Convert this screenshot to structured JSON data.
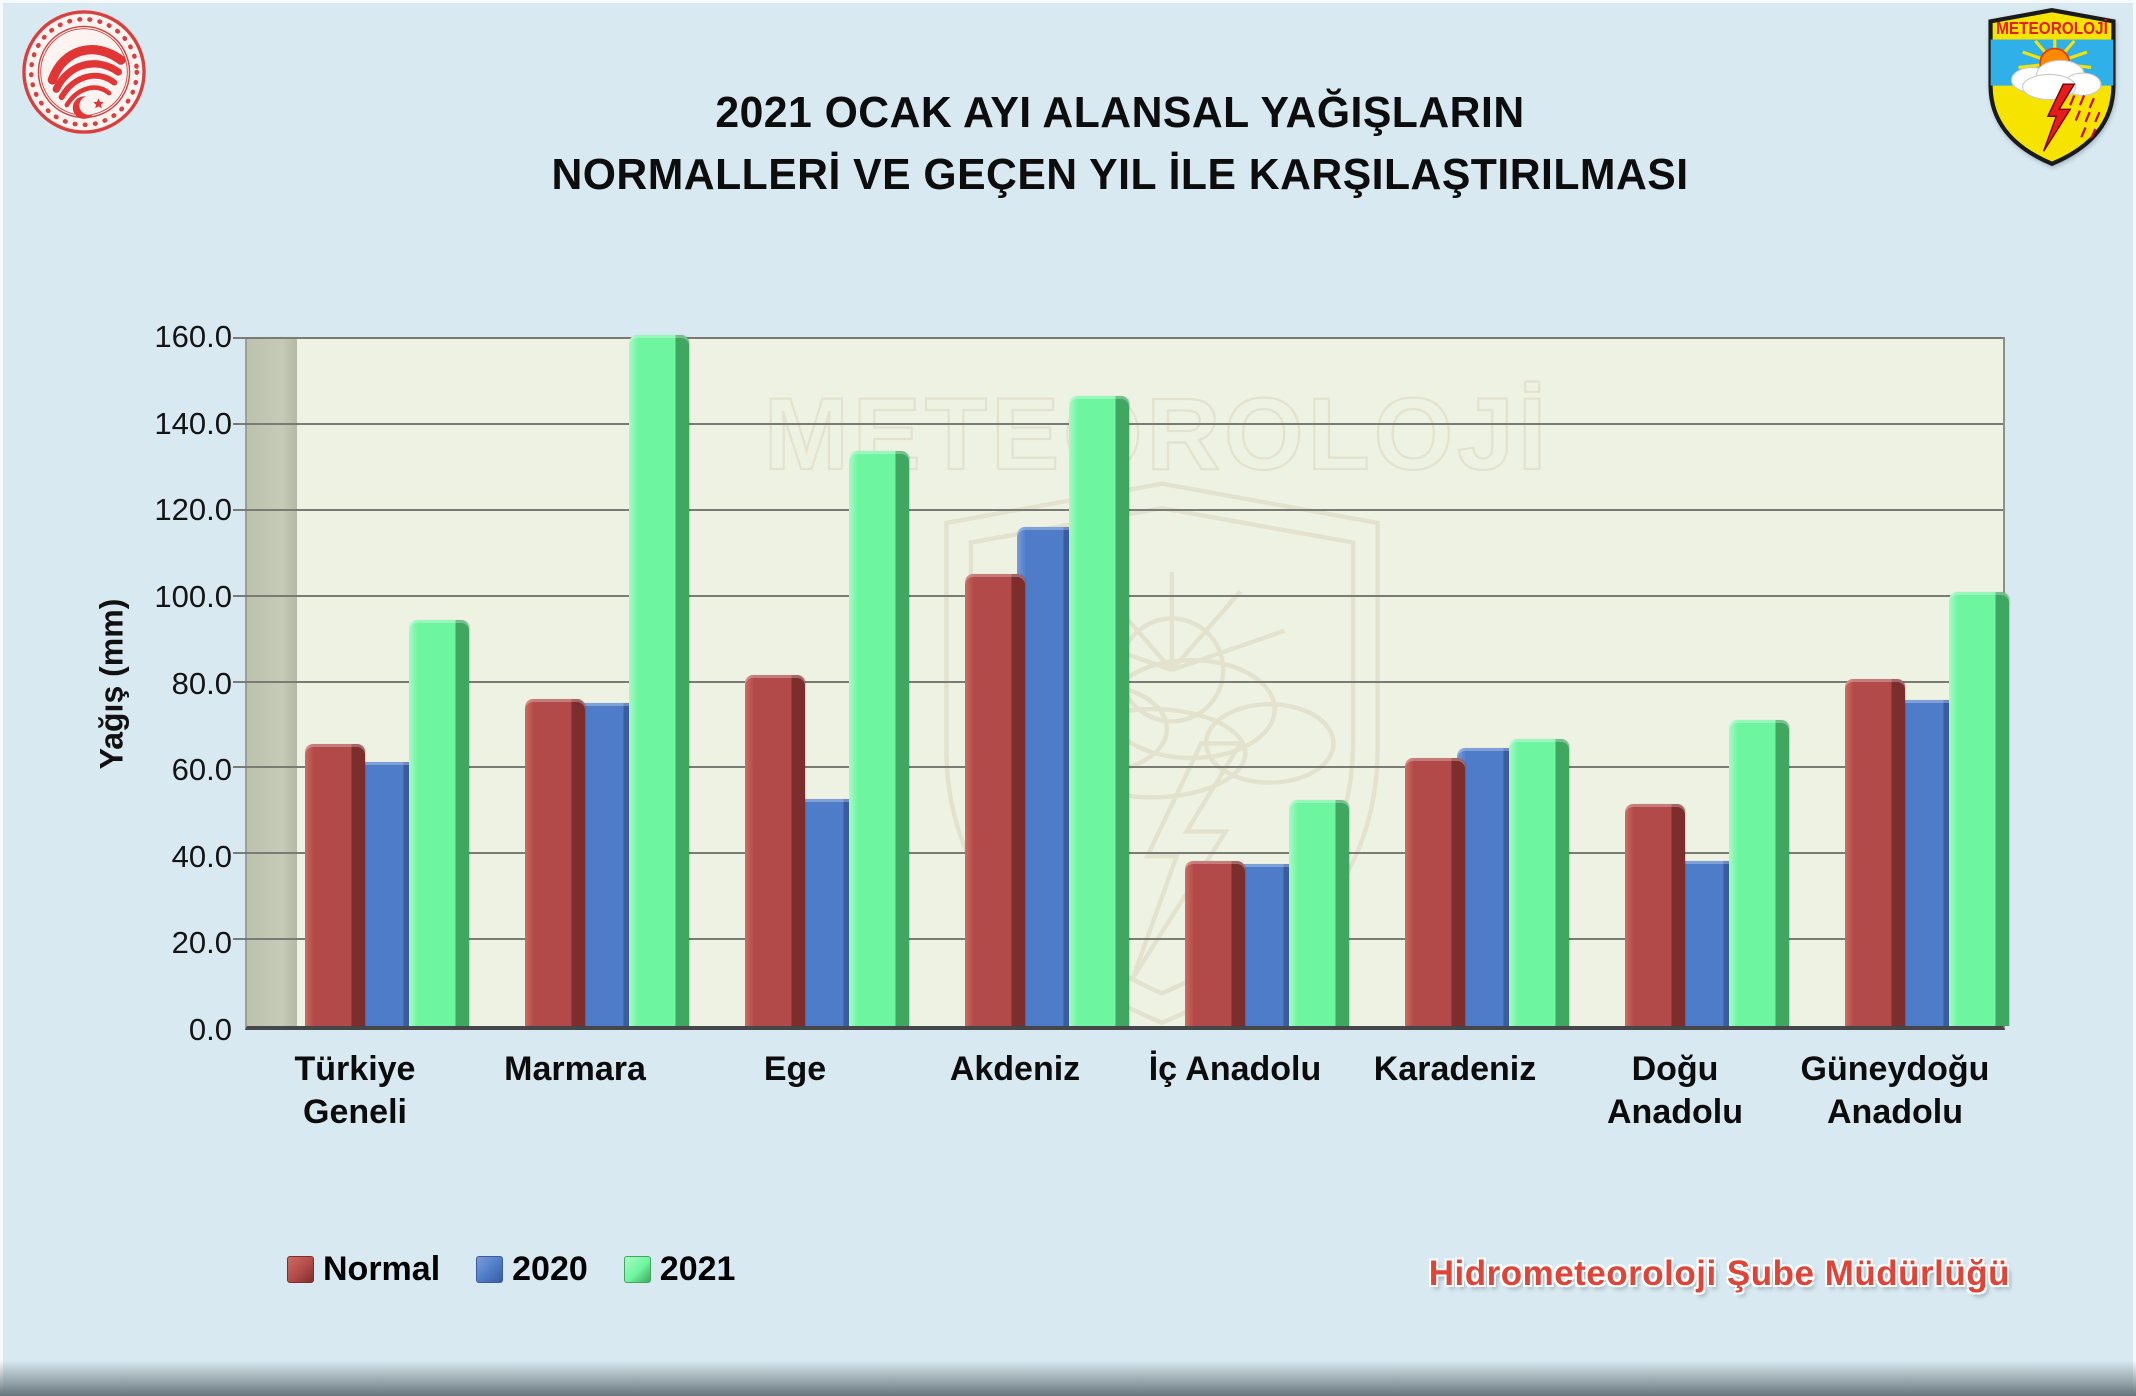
{
  "header": {
    "title_line1": "2021 OCAK AYI ALANSAL YAĞIŞLARIN",
    "title_line2": "NORMALLERİ VE GEÇEN YIL İLE KARŞILAŞTIRILMASI"
  },
  "badges": {
    "meteoroloji": "METEOROLOJİ"
  },
  "watermark": {
    "label": "METEOROLOJİ"
  },
  "chart_data": {
    "type": "bar",
    "title": "2021 OCAK AYI ALANSAL YAĞIŞLARIN NORMALLERİ VE GEÇEN YIL İLE KARŞILAŞTIRILMASI",
    "ylabel": "Yağış (mm)",
    "ylim": [
      0,
      160
    ],
    "ytick_step": 20,
    "grid": true,
    "legend_position": "bottom-left",
    "categories": [
      [
        "Türkiye",
        "Geneli"
      ],
      [
        "Marmara"
      ],
      [
        "Ege"
      ],
      [
        "Akdeniz"
      ],
      [
        "İç Anadolu"
      ],
      [
        "Karadeniz"
      ],
      [
        "Doğu",
        "Anadolu"
      ],
      [
        "Güneydoğu",
        "Anadolu"
      ]
    ],
    "series": [
      {
        "name": "Normal",
        "color": "#b14a48",
        "color_light": "#cd6b62",
        "color_dark": "#7c2e2d",
        "values": [
          65.1,
          75.5,
          81.0,
          104.4,
          38.1,
          61.8,
          51.2,
          80.1
        ]
      },
      {
        "name": "2020",
        "color": "#4e7cc9",
        "color_light": "#7b9cd9",
        "color_dark": "#3a5c9e",
        "values": [
          61.0,
          74.7,
          52.4,
          115.2,
          37.4,
          64.3,
          38.0,
          75.3
        ]
      },
      {
        "name": "2021",
        "color": "#6ef59f",
        "color_light": "#a8fac5",
        "color_dark": "#3fa75f",
        "values": [
          93.7,
          159.6,
          132.7,
          145.4,
          52.2,
          66.2,
          70.6,
          100.3
        ]
      }
    ]
  },
  "footer": {
    "credit": "Hidrometeoroloji Şube Müdürlüğü"
  }
}
